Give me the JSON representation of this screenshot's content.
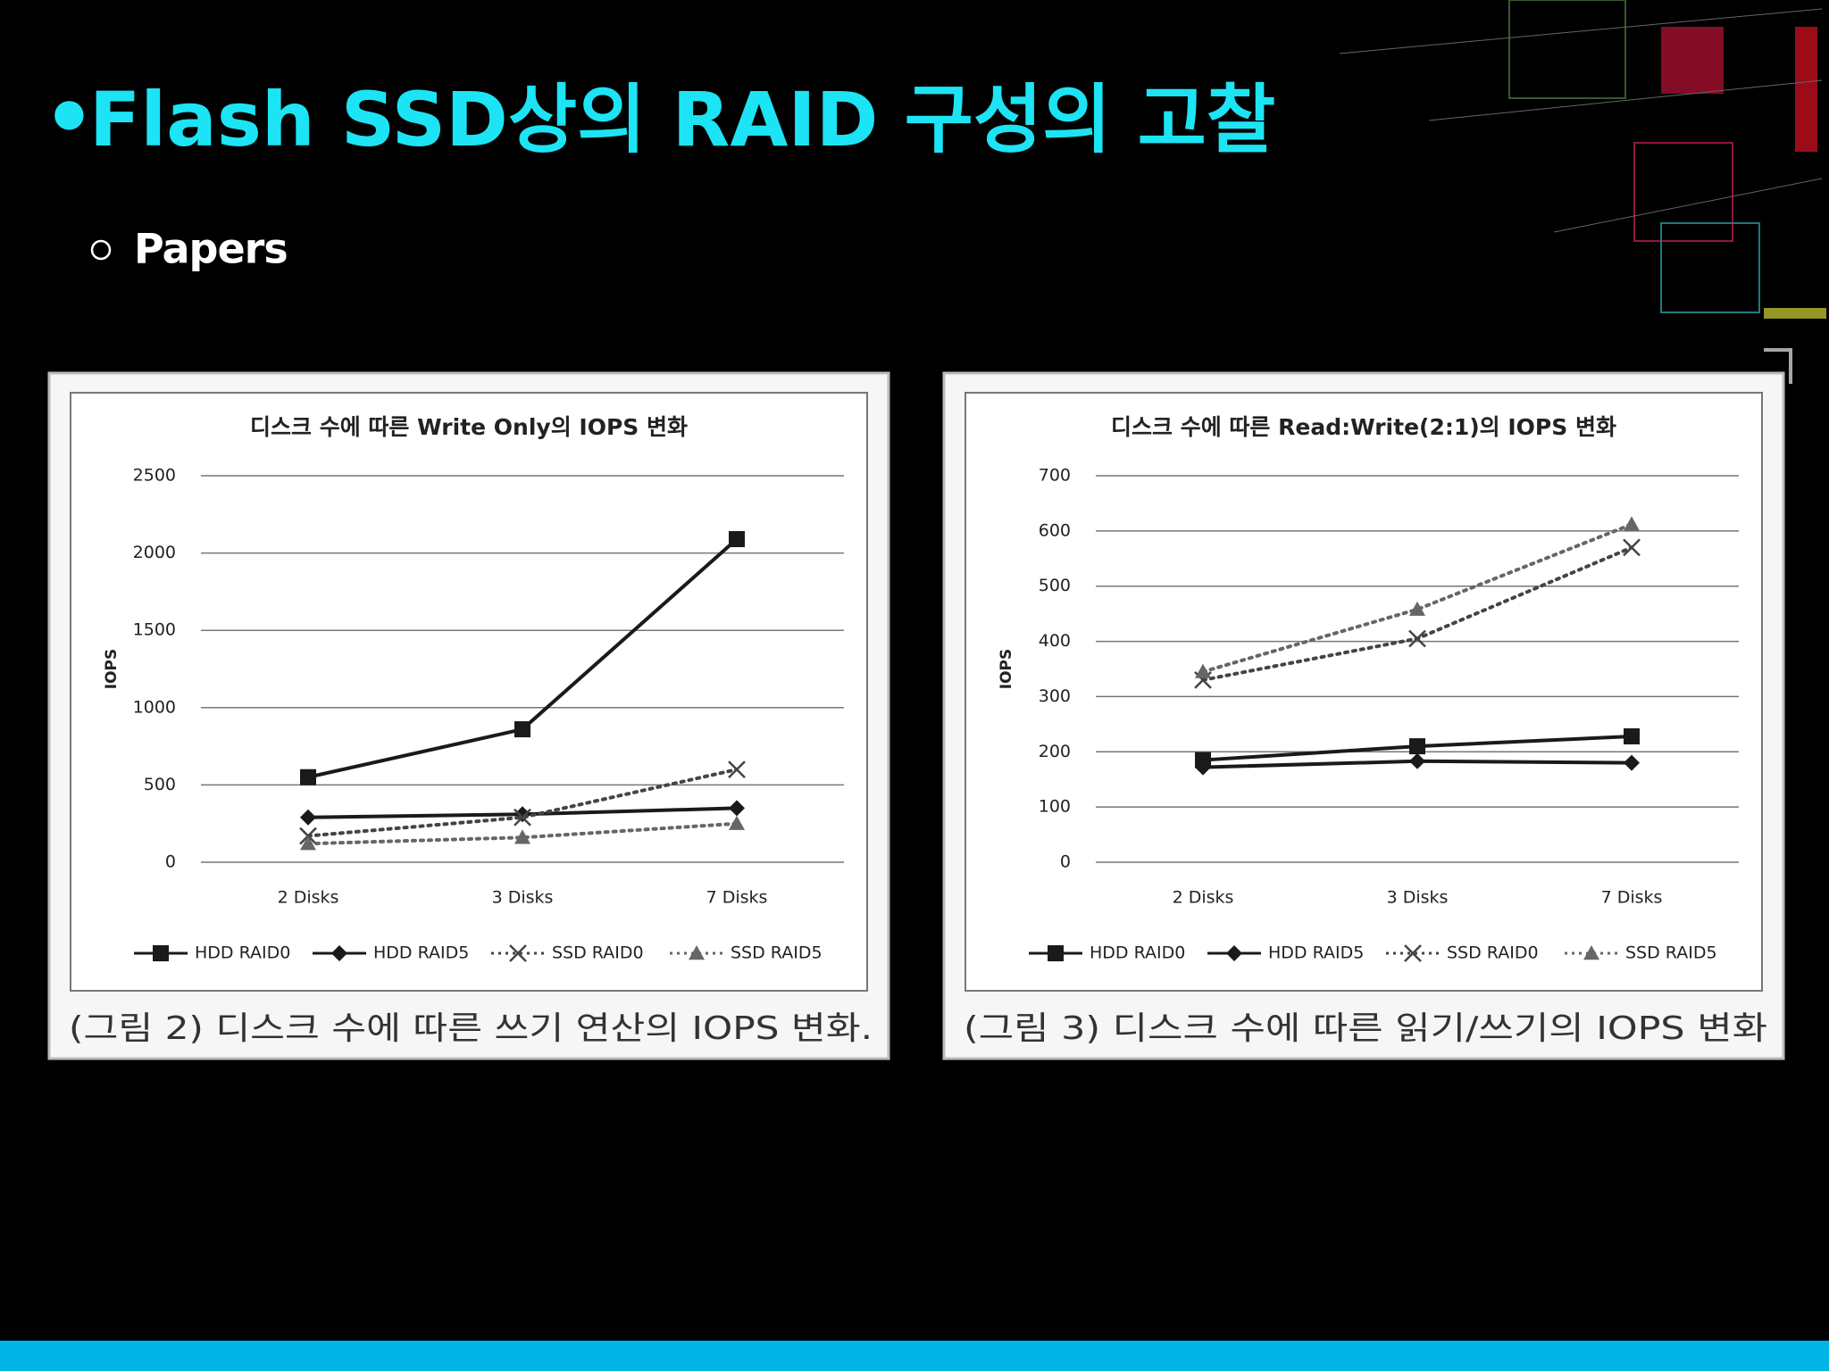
{
  "slide": {
    "title": "Flash SSD상의 RAID 구성의 고찰",
    "bullet": "Papers"
  },
  "chart_data": [
    {
      "type": "line",
      "title": "디스크 수에 따른 Write Only의 IOPS 변화",
      "ylabel": "IOPS",
      "caption": "(그림 2) 디스크 수에 따른 쓰기 연산의 IOPS 변화.",
      "categories": [
        "2 Disks",
        "3 Disks",
        "7 Disks"
      ],
      "ylim": [
        0,
        2500
      ],
      "yticks": [
        0,
        500,
        1000,
        1500,
        2000,
        2500
      ],
      "grid": true,
      "legend": "bottom",
      "series": [
        {
          "name": "HDD RAID0",
          "color": "#1a1a1a",
          "marker": "square",
          "dash": false,
          "values": [
            550,
            860,
            2090
          ]
        },
        {
          "name": "HDD RAID5",
          "color": "#1a1a1a",
          "marker": "diamond",
          "dash": false,
          "values": [
            290,
            310,
            350
          ]
        },
        {
          "name": "SSD RAID0",
          "color": "#444444",
          "marker": "x",
          "dash": true,
          "values": [
            170,
            290,
            600
          ]
        },
        {
          "name": "SSD RAID5",
          "color": "#666666",
          "marker": "triangle",
          "dash": true,
          "values": [
            120,
            160,
            250
          ]
        }
      ]
    },
    {
      "type": "line",
      "title": "디스크 수에 따른 Read:Write(2:1)의 IOPS 변화",
      "ylabel": "IOPS",
      "caption": "(그림 3) 디스크 수에 따른 읽기/쓰기의 IOPS 변화",
      "categories": [
        "2 Disks",
        "3 Disks",
        "7 Disks"
      ],
      "ylim": [
        0,
        700
      ],
      "yticks": [
        0,
        100,
        200,
        300,
        400,
        500,
        600,
        700
      ],
      "grid": true,
      "legend": "bottom",
      "series": [
        {
          "name": "HDD RAID0",
          "color": "#1a1a1a",
          "marker": "square",
          "dash": false,
          "values": [
            185,
            210,
            228
          ]
        },
        {
          "name": "HDD RAID5",
          "color": "#1a1a1a",
          "marker": "diamond",
          "dash": false,
          "values": [
            172,
            183,
            180
          ]
        },
        {
          "name": "SSD RAID0",
          "color": "#444444",
          "marker": "x",
          "dash": true,
          "values": [
            330,
            405,
            570
          ]
        },
        {
          "name": "SSD RAID5",
          "color": "#666666",
          "marker": "triangle",
          "dash": true,
          "values": [
            345,
            458,
            612
          ]
        }
      ]
    }
  ]
}
